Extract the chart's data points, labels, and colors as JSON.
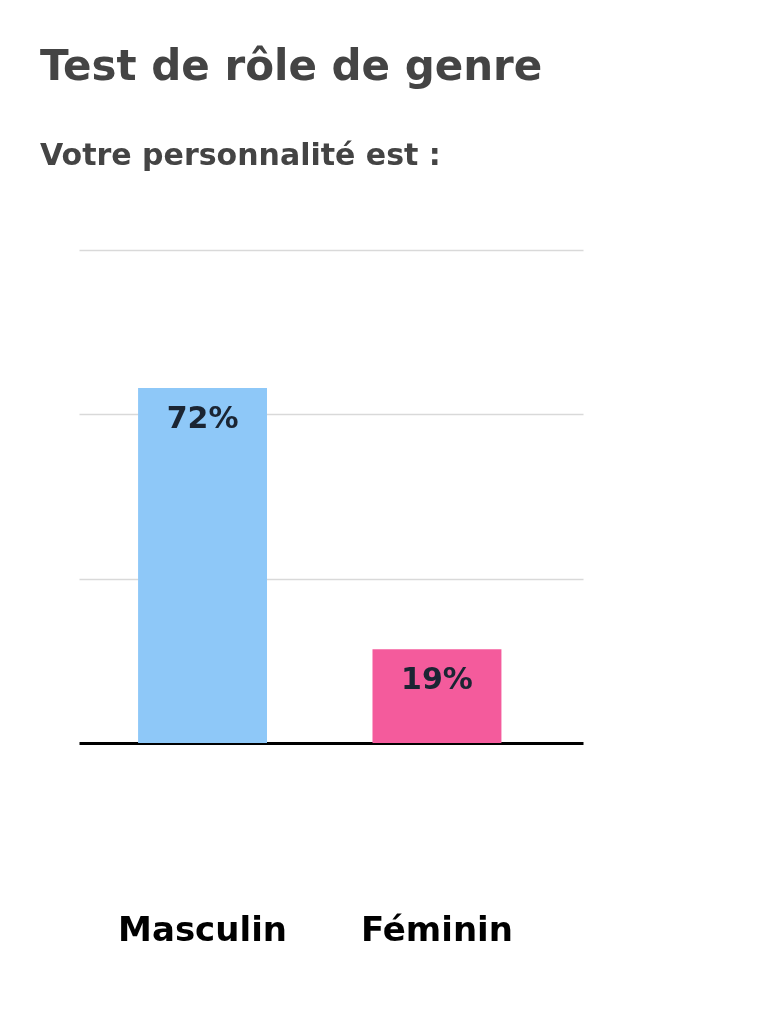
{
  "chart_data": {
    "type": "bar",
    "title": "Test de rôle de genre",
    "subtitle": "Votre personnalité est :",
    "categories": [
      "Masculin",
      "Féminin"
    ],
    "values": [
      72,
      19
    ],
    "colors": [
      "#8ec8f8",
      "#f45b9c"
    ],
    "value_labels": [
      "72%",
      "19%"
    ],
    "ylim": [
      0,
      100
    ],
    "yticks": [
      {
        "value": 33.3,
        "label": null
      },
      {
        "value": 66.7,
        "label": null
      },
      {
        "value": 100,
        "label": null
      }
    ],
    "grid": "y",
    "tick_labels": "x"
  }
}
